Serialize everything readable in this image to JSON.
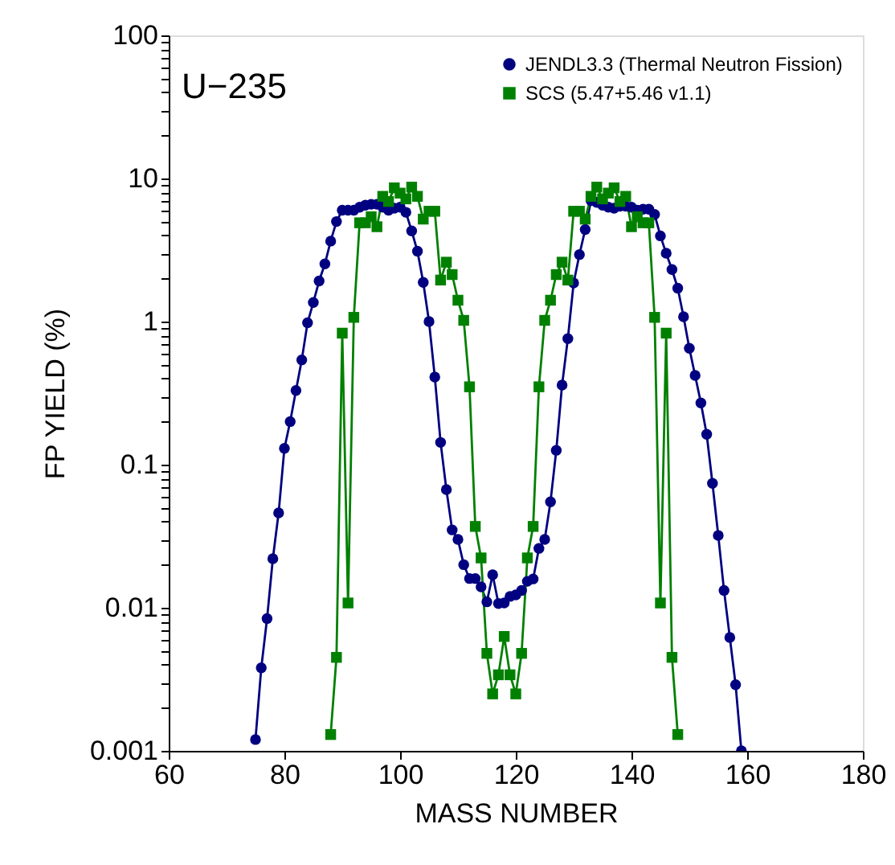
{
  "chart_data": {
    "type": "line",
    "xlabel": "MASS NUMBER",
    "ylabel": "FP YIELD (%)",
    "log": "y",
    "grid": false,
    "legend": "top right",
    "line_style": "solid",
    "annotations": [
      "U−235"
    ],
    "xlim": [
      60,
      180
    ],
    "xticks": [
      60,
      80,
      100,
      120,
      140,
      160,
      180
    ],
    "ylim": [
      0.001,
      100
    ],
    "yticks": [
      0.001,
      {
        "value": 0.002,
        "label": null
      },
      {
        "value": 0.003,
        "label": null
      },
      {
        "value": 0.004,
        "label": null
      },
      {
        "value": 0.005,
        "label": null
      },
      {
        "value": 0.006,
        "label": null
      },
      {
        "value": 0.007,
        "label": null
      },
      {
        "value": 0.008,
        "label": null
      },
      {
        "value": 0.009,
        "label": null
      },
      0.01,
      {
        "value": 0.02,
        "label": null
      },
      {
        "value": 0.03,
        "label": null
      },
      {
        "value": 0.04,
        "label": null
      },
      {
        "value": 0.05,
        "label": null
      },
      {
        "value": 0.06,
        "label": null
      },
      {
        "value": 0.07,
        "label": null
      },
      {
        "value": 0.08,
        "label": null
      },
      {
        "value": 0.09,
        "label": null
      },
      0.1,
      {
        "value": 0.2,
        "label": null
      },
      {
        "value": 0.3,
        "label": null
      },
      {
        "value": 0.4,
        "label": null
      },
      {
        "value": 0.5,
        "label": null
      },
      {
        "value": 0.6,
        "label": null
      },
      {
        "value": 0.7,
        "label": null
      },
      {
        "value": 0.8,
        "label": null
      },
      {
        "value": 0.9,
        "label": null
      },
      1,
      {
        "value": 2,
        "label": null
      },
      {
        "value": 3,
        "label": null
      },
      {
        "value": 4,
        "label": null
      },
      {
        "value": 5,
        "label": null
      },
      {
        "value": 6,
        "label": null
      },
      {
        "value": 7,
        "label": null
      },
      {
        "value": 8,
        "label": null
      },
      {
        "value": 9,
        "label": null
      },
      10,
      {
        "value": 20,
        "label": null
      },
      {
        "value": 30,
        "label": null
      },
      {
        "value": 40,
        "label": null
      },
      {
        "value": 50,
        "label": null
      },
      {
        "value": 60,
        "label": null
      },
      {
        "value": 70,
        "label": null
      },
      {
        "value": 80,
        "label": null
      },
      {
        "value": 90,
        "label": null
      },
      100
    ],
    "series": [
      {
        "name": "JENDL3.3 (Thermal Neutron Fission)",
        "color": "#000080",
        "marker": "circle",
        "x": [
          75,
          76,
          77,
          78,
          79,
          80,
          81,
          82,
          83,
          84,
          85,
          86,
          87,
          88,
          89,
          90,
          91,
          92,
          93,
          94,
          95,
          96,
          97,
          98,
          99,
          100,
          101,
          102,
          103,
          104,
          105,
          106,
          107,
          108,
          109,
          110,
          111,
          112,
          113,
          114,
          115,
          116,
          117,
          118,
          119,
          120,
          121,
          122,
          123,
          124,
          125,
          126,
          127,
          128,
          129,
          130,
          131,
          132,
          133,
          134,
          135,
          136,
          137,
          138,
          139,
          140,
          141,
          142,
          143,
          144,
          145,
          146,
          147,
          148,
          149,
          150,
          151,
          152,
          153,
          154,
          155,
          156,
          157,
          158,
          159
        ],
        "values": [
          0.0012,
          0.0038,
          0.0084,
          0.022,
          0.046,
          0.13,
          0.2,
          0.33,
          0.54,
          0.98,
          1.36,
          1.92,
          2.53,
          3.65,
          5.0,
          6.0,
          6.0,
          6.0,
          6.3,
          6.5,
          6.6,
          6.6,
          6.3,
          6.0,
          6.2,
          6.3,
          5.8,
          4.3,
          3.1,
          1.88,
          1.0,
          0.41,
          0.143,
          0.067,
          0.035,
          0.03,
          0.02,
          0.016,
          0.016,
          0.014,
          0.011,
          0.017,
          0.0107,
          0.0108,
          0.012,
          0.0123,
          0.0132,
          0.0153,
          0.0159,
          0.026,
          0.03,
          0.055,
          0.126,
          0.36,
          0.76,
          1.86,
          2.94,
          4.4,
          7.0,
          6.8,
          6.5,
          6.3,
          6.2,
          6.4,
          6.4,
          6.3,
          6.0,
          6.1,
          6.1,
          5.6,
          3.97,
          3.0,
          2.31,
          1.71,
          1.08,
          0.65,
          0.42,
          0.27,
          0.163,
          0.074,
          0.032,
          0.0132,
          0.0062,
          0.0029,
          0.001
        ]
      },
      {
        "name": "SCS (5.47+5.46 v1.1)",
        "color": "#008000",
        "marker": "square",
        "x": [
          88,
          89,
          90,
          91,
          92,
          93,
          94,
          95,
          96,
          97,
          98,
          99,
          100,
          101,
          102,
          103,
          104,
          105,
          106,
          107,
          108,
          109,
          110,
          111,
          112,
          113,
          114,
          115,
          116,
          117,
          118,
          119,
          120,
          121,
          122,
          123,
          124,
          125,
          126,
          127,
          128,
          129,
          130,
          131,
          132,
          133,
          134,
          135,
          136,
          137,
          138,
          139,
          140,
          141,
          142,
          143,
          144,
          145,
          146,
          147,
          148
        ],
        "values": [
          0.0013,
          0.0045,
          0.83,
          0.0108,
          1.07,
          4.9,
          4.9,
          5.4,
          4.6,
          7.5,
          6.9,
          8.6,
          7.9,
          7.2,
          8.7,
          7.5,
          5.2,
          5.9,
          5.9,
          1.95,
          2.6,
          2.13,
          1.41,
          1.02,
          0.35,
          0.037,
          0.0223,
          0.0048,
          0.0025,
          0.0034,
          0.0063,
          0.0034,
          0.0025,
          0.0048,
          0.0223,
          0.037,
          0.35,
          1.02,
          1.41,
          2.13,
          2.6,
          1.95,
          5.9,
          5.9,
          5.2,
          7.5,
          8.7,
          7.2,
          7.9,
          8.6,
          6.9,
          7.5,
          4.6,
          5.4,
          4.9,
          4.9,
          1.07,
          0.0108,
          0.83,
          0.0045,
          0.0013
        ]
      }
    ]
  }
}
